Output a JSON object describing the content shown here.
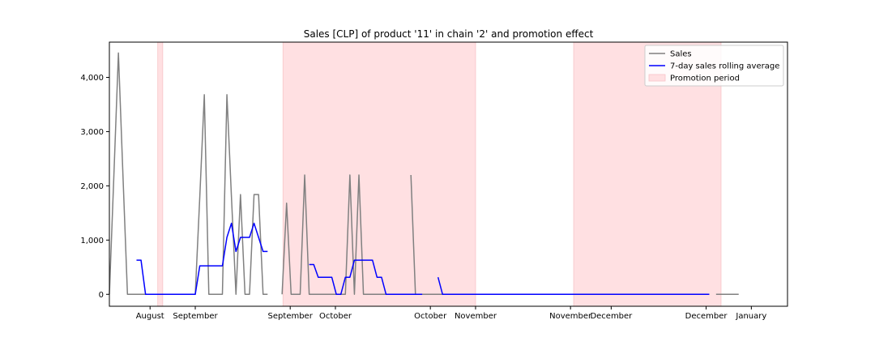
{
  "chart_data": {
    "type": "line",
    "title": "Sales [CLP] of product '11' in chain '2' and promotion effect",
    "xlabel": "",
    "ylabel": "",
    "x_range": [
      -3,
      147
    ],
    "ylim": [
      -220,
      4650
    ],
    "y_ticks": [
      0,
      1000,
      2000,
      3000,
      4000
    ],
    "y_tick_labels": [
      "0",
      "1,000",
      "2,000",
      "3,000",
      "4,000"
    ],
    "x_ticks": [
      {
        "x": 6,
        "label": "August"
      },
      {
        "x": 16,
        "label": "September"
      },
      {
        "x": 37,
        "label": "September"
      },
      {
        "x": 47,
        "label": "October"
      },
      {
        "x": 68,
        "label": "October"
      },
      {
        "x": 78,
        "label": "November"
      },
      {
        "x": 99,
        "label": "November"
      },
      {
        "x": 108,
        "label": "December"
      },
      {
        "x": 129,
        "label": "December"
      },
      {
        "x": 139,
        "label": "January"
      }
    ],
    "grid": false,
    "legend_position": "top-right",
    "promotion_periods": [
      [
        7.7,
        8.8
      ],
      [
        35.4,
        78.0
      ],
      [
        99.7,
        132.3
      ]
    ],
    "series": [
      {
        "name": "Sales",
        "color": "#808080",
        "segments": [
          [
            [
              -3,
              0
            ],
            [
              -2,
              2200
            ],
            [
              -1,
              4450
            ],
            [
              0,
              2200
            ],
            [
              1,
              0
            ],
            [
              2,
              0
            ],
            [
              3,
              0
            ],
            [
              4,
              0
            ],
            [
              5,
              0
            ],
            [
              6,
              0
            ],
            [
              7,
              0
            ],
            [
              8,
              0
            ],
            [
              9,
              0
            ],
            [
              10,
              0
            ],
            [
              11,
              0
            ],
            [
              12,
              0
            ],
            [
              13,
              0
            ],
            [
              14,
              0
            ],
            [
              15,
              0
            ],
            [
              16,
              0
            ],
            [
              17,
              1800
            ],
            [
              18,
              3680
            ],
            [
              19,
              0
            ],
            [
              20,
              0
            ],
            [
              21,
              0
            ],
            [
              22,
              0
            ],
            [
              23,
              3680
            ],
            [
              24,
              1800
            ],
            [
              25,
              0
            ],
            [
              26,
              1840
            ],
            [
              27,
              0
            ],
            [
              28,
              0
            ],
            [
              29,
              1840
            ],
            [
              30,
              1840
            ],
            [
              31,
              0
            ],
            [
              32,
              0
            ]
          ],
          [
            [
              35.2,
              0
            ],
            [
              36.2,
              1680
            ],
            [
              37.2,
              0
            ],
            [
              38.2,
              0
            ],
            [
              39.2,
              0
            ],
            [
              40.2,
              2200
            ],
            [
              41.2,
              0
            ],
            [
              42.2,
              0
            ],
            [
              43.2,
              0
            ],
            [
              44.2,
              0
            ],
            [
              45.2,
              0
            ],
            [
              46.2,
              0
            ],
            [
              47.2,
              0
            ],
            [
              48.2,
              0
            ],
            [
              49.2,
              0
            ],
            [
              50.2,
              2200
            ],
            [
              51.2,
              0
            ],
            [
              52.2,
              2200
            ],
            [
              53.2,
              0
            ],
            [
              54.2,
              0
            ],
            [
              55.2,
              0
            ],
            [
              56.2,
              0
            ],
            [
              57.2,
              0
            ],
            [
              58.2,
              0
            ],
            [
              59.2,
              0
            ],
            [
              60.2,
              0
            ],
            [
              61.2,
              0
            ],
            [
              62.2,
              0
            ],
            [
              63.2,
              0
            ],
            [
              64.2,
              0
            ],
            [
              65.2,
              0
            ],
            [
              66.2,
              0
            ]
          ],
          [
            [
              63.7,
              2200
            ],
            [
              64.7,
              0
            ],
            [
              65.7,
              0
            ],
            [
              66.7,
              0
            ],
            [
              67.7,
              0
            ],
            [
              68.7,
              0
            ],
            [
              69.7,
              0
            ],
            [
              70.7,
              0
            ],
            [
              71.7,
              0
            ],
            [
              72.7,
              0
            ],
            [
              73.7,
              0
            ],
            [
              74.7,
              0
            ],
            [
              75.7,
              0
            ],
            [
              76.7,
              0
            ],
            [
              77.7,
              0
            ],
            [
              78.7,
              0
            ],
            [
              79.7,
              0
            ],
            [
              80.7,
              0
            ],
            [
              81.7,
              0
            ],
            [
              82.7,
              0
            ],
            [
              83.7,
              0
            ],
            [
              84.7,
              0
            ],
            [
              85.7,
              0
            ],
            [
              86.7,
              0
            ],
            [
              87.7,
              0
            ],
            [
              88.7,
              0
            ],
            [
              89.7,
              0
            ],
            [
              90.7,
              0
            ],
            [
              91.7,
              0
            ],
            [
              92.7,
              0
            ],
            [
              93.7,
              0
            ],
            [
              94.7,
              0
            ],
            [
              95.7,
              0
            ],
            [
              96.7,
              0
            ],
            [
              97.7,
              0
            ],
            [
              98.7,
              0
            ],
            [
              99.7,
              0
            ],
            [
              100.7,
              0
            ],
            [
              101.7,
              0
            ],
            [
              102.7,
              0
            ],
            [
              103.7,
              0
            ],
            [
              104.7,
              0
            ],
            [
              105.7,
              0
            ],
            [
              106.7,
              0
            ],
            [
              107.7,
              0
            ],
            [
              108.7,
              0
            ],
            [
              109.7,
              0
            ],
            [
              110.7,
              0
            ],
            [
              111.7,
              0
            ],
            [
              112.7,
              0
            ],
            [
              113.7,
              0
            ],
            [
              114.7,
              0
            ],
            [
              115.7,
              0
            ],
            [
              116.7,
              0
            ],
            [
              117.7,
              0
            ],
            [
              118.7,
              0
            ],
            [
              119.7,
              0
            ],
            [
              120.7,
              0
            ],
            [
              121.7,
              0
            ],
            [
              122.7,
              0
            ],
            [
              123.7,
              0
            ],
            [
              124.7,
              0
            ],
            [
              125.7,
              0
            ],
            [
              126.7,
              0
            ],
            [
              127.7,
              0
            ],
            [
              128.7,
              0
            ],
            [
              129.7,
              0
            ]
          ],
          [
            [
              131.2,
              0
            ],
            [
              132.2,
              0
            ],
            [
              133.2,
              0
            ],
            [
              134.2,
              0
            ],
            [
              135.2,
              0
            ],
            [
              136.2,
              0
            ]
          ]
        ]
      },
      {
        "name": "7-day sales rolling average",
        "color": "#0000ff",
        "segments": [
          [
            [
              3,
              630
            ],
            [
              4,
              630
            ],
            [
              5,
              0
            ],
            [
              6,
              0
            ],
            [
              7,
              0
            ],
            [
              8,
              0
            ],
            [
              9,
              0
            ],
            [
              10,
              0
            ],
            [
              11,
              0
            ],
            [
              12,
              0
            ],
            [
              13,
              0
            ],
            [
              14,
              0
            ],
            [
              15,
              0
            ],
            [
              16,
              0
            ],
            [
              17,
              525
            ],
            [
              18,
              525
            ],
            [
              19,
              525
            ],
            [
              20,
              525
            ],
            [
              21,
              525
            ],
            [
              22,
              525
            ],
            [
              23,
              1050
            ],
            [
              24,
              1310
            ],
            [
              25,
              790
            ],
            [
              26,
              1050
            ],
            [
              27,
              1050
            ],
            [
              28,
              1050
            ],
            [
              29,
              1310
            ],
            [
              30,
              1050
            ],
            [
              31,
              790
            ],
            [
              32,
              790
            ]
          ],
          [
            [
              41.2,
              550
            ],
            [
              42.2,
              550
            ],
            [
              43.2,
              315
            ],
            [
              44.2,
              315
            ],
            [
              45.2,
              315
            ],
            [
              46.2,
              315
            ],
            [
              47.2,
              0
            ],
            [
              48.2,
              0
            ],
            [
              49.2,
              315
            ],
            [
              50.2,
              315
            ],
            [
              51.2,
              630
            ],
            [
              52.2,
              630
            ],
            [
              53.2,
              630
            ],
            [
              54.2,
              630
            ],
            [
              55.2,
              630
            ],
            [
              56.2,
              315
            ],
            [
              57.2,
              315
            ],
            [
              58.2,
              0
            ],
            [
              59.2,
              0
            ],
            [
              60.2,
              0
            ],
            [
              61.2,
              0
            ],
            [
              62.2,
              0
            ],
            [
              63.2,
              0
            ],
            [
              64.2,
              0
            ],
            [
              65.2,
              0
            ],
            [
              66.2,
              0
            ]
          ],
          [
            [
              69.7,
              315
            ],
            [
              70.7,
              0
            ],
            [
              71.7,
              0
            ],
            [
              72.7,
              0
            ],
            [
              73.7,
              0
            ],
            [
              74.7,
              0
            ],
            [
              75.7,
              0
            ],
            [
              76.7,
              0
            ],
            [
              77.7,
              0
            ],
            [
              78.7,
              0
            ],
            [
              79.7,
              0
            ],
            [
              80.7,
              0
            ],
            [
              81.7,
              0
            ],
            [
              82.7,
              0
            ],
            [
              83.7,
              0
            ],
            [
              84.7,
              0
            ],
            [
              85.7,
              0
            ],
            [
              86.7,
              0
            ],
            [
              87.7,
              0
            ],
            [
              88.7,
              0
            ],
            [
              89.7,
              0
            ],
            [
              90.7,
              0
            ],
            [
              91.7,
              0
            ],
            [
              92.7,
              0
            ],
            [
              93.7,
              0
            ],
            [
              94.7,
              0
            ],
            [
              95.7,
              0
            ],
            [
              96.7,
              0
            ],
            [
              97.7,
              0
            ],
            [
              98.7,
              0
            ],
            [
              99.7,
              0
            ],
            [
              100.7,
              0
            ],
            [
              101.7,
              0
            ],
            [
              102.7,
              0
            ],
            [
              103.7,
              0
            ],
            [
              104.7,
              0
            ],
            [
              105.7,
              0
            ],
            [
              106.7,
              0
            ],
            [
              107.7,
              0
            ],
            [
              108.7,
              0
            ],
            [
              109.7,
              0
            ],
            [
              110.7,
              0
            ],
            [
              111.7,
              0
            ],
            [
              112.7,
              0
            ],
            [
              113.7,
              0
            ],
            [
              114.7,
              0
            ],
            [
              115.7,
              0
            ],
            [
              116.7,
              0
            ],
            [
              117.7,
              0
            ],
            [
              118.7,
              0
            ],
            [
              119.7,
              0
            ],
            [
              120.7,
              0
            ],
            [
              121.7,
              0
            ],
            [
              122.7,
              0
            ],
            [
              123.7,
              0
            ],
            [
              124.7,
              0
            ],
            [
              125.7,
              0
            ],
            [
              126.7,
              0
            ],
            [
              127.7,
              0
            ],
            [
              128.7,
              0
            ],
            [
              129.7,
              0
            ]
          ]
        ]
      }
    ],
    "legend": [
      {
        "label": "Sales",
        "kind": "line",
        "color": "#808080"
      },
      {
        "label": "7-day sales rolling average",
        "kind": "line",
        "color": "#0000ff"
      },
      {
        "label": "Promotion period",
        "kind": "patch",
        "color": "#ffe0e2"
      }
    ],
    "promotion_color": "#ffe0e2",
    "promotion_edge_color": "#f7c4c8"
  }
}
